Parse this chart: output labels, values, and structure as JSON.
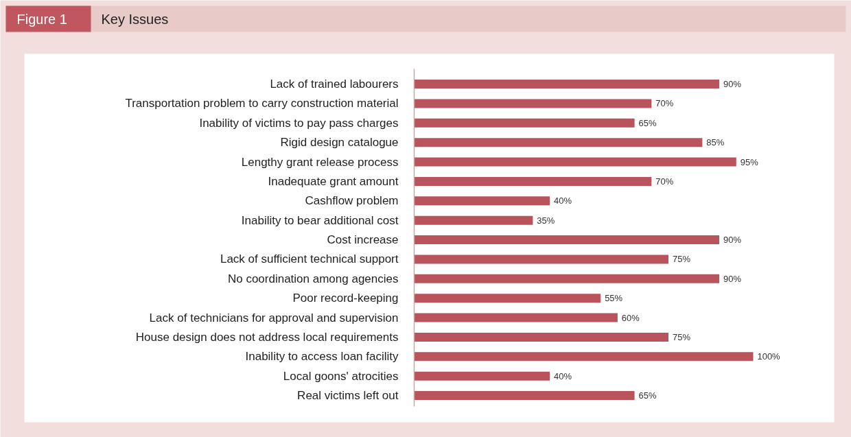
{
  "chart_data": {
    "type": "bar",
    "orientation": "horizontal",
    "title": "Key Issues",
    "annotations": [
      "Figure 1"
    ],
    "categories": [
      "Lack of trained labourers",
      "Transportation problem to carry construction material",
      "Inability of victims to pay pass charges",
      "Rigid design catalogue",
      "Lengthy grant release process",
      "Inadequate grant amount",
      "Cashflow problem",
      "Inability to bear additional cost",
      "Cost increase",
      "Lack of sufficient technical support",
      "No coordination among agencies",
      "Poor record-keeping",
      "Lack of technicians for approval and supervision",
      "House design does not address local requirements",
      "Inability to access loan facility",
      "Local goons' atrocities",
      "Real victims left out"
    ],
    "values": [
      90,
      70,
      65,
      85,
      95,
      70,
      40,
      35,
      90,
      75,
      90,
      55,
      60,
      75,
      100,
      40,
      65
    ],
    "value_labels": [
      "90%",
      "70%",
      "65%",
      "85%",
      "95%",
      "70%",
      "40%",
      "35%",
      "90%",
      "75%",
      "90%",
      "55%",
      "60%",
      "75%",
      "100%",
      "40%",
      "65%"
    ],
    "color": "#b9545c",
    "grid": false
  }
}
